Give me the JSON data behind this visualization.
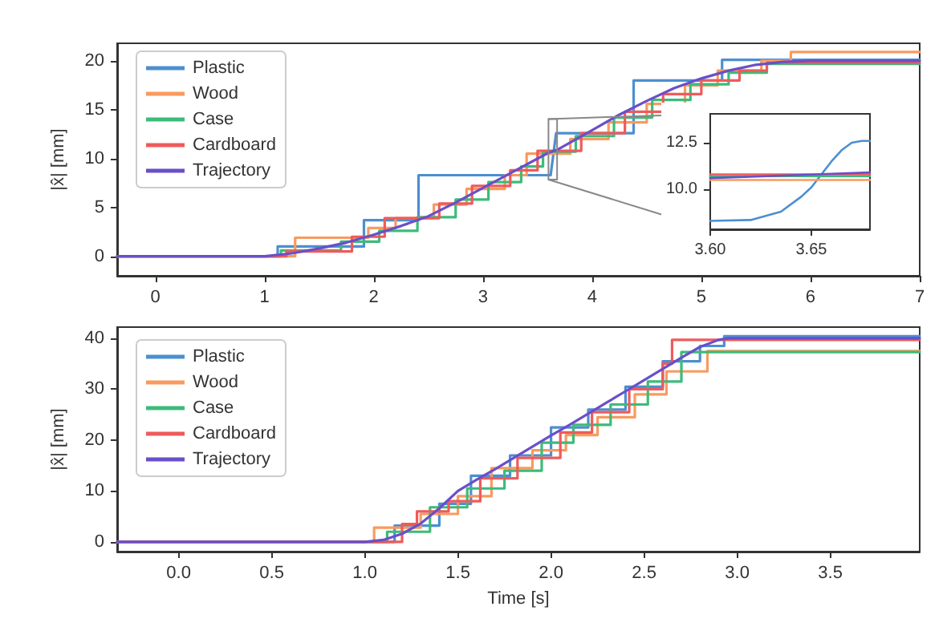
{
  "chart_data": [
    {
      "type": "line",
      "ylabel": "|x̂| [mm]",
      "legend": "top left",
      "grid": false,
      "xlim": [
        -0.35,
        7
      ],
      "ylim": [
        -2,
        21.8
      ],
      "xticks": [
        0,
        1,
        2,
        3,
        4,
        5,
        6,
        7
      ],
      "yticks": [
        0,
        5,
        10,
        15,
        20
      ],
      "series": [
        {
          "name": "Plastic",
          "color": "#4c8fd0",
          "x": [
            -0.35,
            1.12,
            1.12,
            1.91,
            1.91,
            2.41,
            2.41,
            3.62,
            3.67,
            4.38,
            4.38,
            5.19,
            5.19,
            7
          ],
          "values": [
            0,
            0,
            1.0,
            1.0,
            3.7,
            3.7,
            8.3,
            8.3,
            12.6,
            12.6,
            18.0,
            18.0,
            20.1,
            20.1
          ]
        },
        {
          "name": "Wood",
          "color": "#f99a5e",
          "x": [
            -0.35,
            1.28,
            1.28,
            1.95,
            1.95,
            2.2,
            2.2,
            2.55,
            2.55,
            2.85,
            2.85,
            3.2,
            3.2,
            3.4,
            3.4,
            3.8,
            3.8,
            4.15,
            4.15,
            4.5,
            4.5,
            4.85,
            4.85,
            5.15,
            5.15,
            5.55,
            5.55,
            5.82,
            5.82,
            7
          ],
          "values": [
            0,
            0,
            1.9,
            1.9,
            2.9,
            2.9,
            3.9,
            3.9,
            5.3,
            5.3,
            6.9,
            6.9,
            8.3,
            8.3,
            10.5,
            10.5,
            12.0,
            12.0,
            13.7,
            13.7,
            15.6,
            15.6,
            17.5,
            17.5,
            19.0,
            19.0,
            20.0,
            20.0,
            20.9,
            20.9
          ]
        },
        {
          "name": "Case",
          "color": "#3dbb7a",
          "x": [
            -0.35,
            1.15,
            1.15,
            1.7,
            1.7,
            2.05,
            2.05,
            2.4,
            2.4,
            2.75,
            2.75,
            3.05,
            3.05,
            3.35,
            3.35,
            3.55,
            3.55,
            3.85,
            3.85,
            4.2,
            4.2,
            4.55,
            4.55,
            4.9,
            4.9,
            5.25,
            5.25,
            5.6,
            5.6,
            7
          ],
          "values": [
            0,
            0,
            0.6,
            0.6,
            1.5,
            1.5,
            2.6,
            2.6,
            4.0,
            4.0,
            5.8,
            5.8,
            7.6,
            7.6,
            9.2,
            9.2,
            10.7,
            10.7,
            12.3,
            12.3,
            14.2,
            14.2,
            16.0,
            16.0,
            17.6,
            17.6,
            18.8,
            18.8,
            19.7,
            19.7
          ]
        },
        {
          "name": "Cardboard",
          "color": "#ee5b5b",
          "x": [
            -0.35,
            1.2,
            1.2,
            1.8,
            1.8,
            2.1,
            2.1,
            2.6,
            2.6,
            2.9,
            2.9,
            3.25,
            3.25,
            3.5,
            3.5,
            3.9,
            3.9,
            4.3,
            4.3,
            4.65,
            4.65,
            5.0,
            5.0,
            5.35,
            5.35,
            5.6,
            5.6,
            7
          ],
          "values": [
            0,
            0,
            0.5,
            0.5,
            2.0,
            2.0,
            3.9,
            3.9,
            5.4,
            5.4,
            7.2,
            7.2,
            8.8,
            8.8,
            10.8,
            10.8,
            12.6,
            12.6,
            14.8,
            14.8,
            16.6,
            16.6,
            18.0,
            18.0,
            19.0,
            19.0,
            19.8,
            19.8
          ]
        },
        {
          "name": "Trajectory",
          "color": "#6a4fc8",
          "x": [
            -0.35,
            1.0,
            1.25,
            1.5,
            1.75,
            2.0,
            2.25,
            2.5,
            2.75,
            3.0,
            3.25,
            3.6,
            3.68,
            4.0,
            4.25,
            4.5,
            4.75,
            5.0,
            5.25,
            5.5,
            5.75,
            6.0,
            7
          ],
          "values": [
            0,
            0,
            0.3,
            0.8,
            1.4,
            2.2,
            3.1,
            4.1,
            5.5,
            7.0,
            8.5,
            10.6,
            10.9,
            12.9,
            14.5,
            15.9,
            17.2,
            18.2,
            19.0,
            19.6,
            19.9,
            20.0,
            20.0
          ]
        }
      ]
    },
    {
      "type": "line",
      "legend": false,
      "grid": false,
      "xlim": [
        3.6,
        3.679
      ],
      "ylim": [
        7.85,
        14.05
      ],
      "xticks": [
        {
          "value": 3.6,
          "label": "3.60"
        },
        {
          "value": 3.65,
          "label": "3.65"
        }
      ],
      "yticks": [
        {
          "value": 10,
          "label": "10.0"
        },
        {
          "value": 12.5,
          "label": "12.5"
        }
      ],
      "series": [
        {
          "color": "#4c8fd0",
          "x": [
            3.6,
            3.62,
            3.635,
            3.645,
            3.65,
            3.655,
            3.66,
            3.665,
            3.67,
            3.675,
            3.679
          ],
          "values": [
            8.3,
            8.35,
            8.8,
            9.6,
            10.1,
            10.8,
            11.5,
            12.1,
            12.5,
            12.6,
            12.6
          ]
        },
        {
          "color": "#f99a5e",
          "x": [
            3.6,
            3.679
          ],
          "values": [
            10.5,
            10.5
          ]
        },
        {
          "color": "#3dbb7a",
          "x": [
            3.6,
            3.679
          ],
          "values": [
            10.7,
            10.7
          ]
        },
        {
          "color": "#ee5b5b",
          "x": [
            3.6,
            3.679
          ],
          "values": [
            10.8,
            10.8
          ]
        },
        {
          "color": "#6a4fc8",
          "x": [
            3.6,
            3.679
          ],
          "values": [
            10.6,
            10.9
          ]
        }
      ]
    },
    {
      "type": "line",
      "xlabel": "Time [s]",
      "ylabel": "|x̂| [mm]",
      "legend": "top left",
      "grid": false,
      "xlim": [
        -0.33,
        3.98
      ],
      "ylim": [
        -1.9,
        42.2
      ],
      "xticks": [
        {
          "value": 0,
          "label": "0.0"
        },
        {
          "value": 0.5,
          "label": "0.5"
        },
        {
          "value": 1,
          "label": "1.0"
        },
        {
          "value": 1.5,
          "label": "1.5"
        },
        {
          "value": 2,
          "label": "2.0"
        },
        {
          "value": 2.5,
          "label": "2.5"
        },
        {
          "value": 3,
          "label": "3.0"
        },
        {
          "value": 3.5,
          "label": "3.5"
        }
      ],
      "yticks": [
        0,
        10,
        20,
        30,
        40
      ],
      "series": [
        {
          "name": "Plastic",
          "color": "#4c8fd0",
          "x": [
            -0.33,
            1.16,
            1.16,
            1.4,
            1.4,
            1.57,
            1.57,
            1.78,
            1.78,
            2.0,
            2.0,
            2.2,
            2.2,
            2.4,
            2.4,
            2.6,
            2.6,
            2.8,
            2.8,
            2.93,
            2.93,
            3.98
          ],
          "values": [
            0,
            0,
            3.2,
            3.2,
            7.5,
            7.5,
            13.0,
            13.0,
            17.0,
            17.0,
            22.5,
            22.5,
            26.0,
            26.0,
            30.5,
            30.5,
            35.5,
            35.5,
            38.5,
            38.5,
            40.4,
            40.4
          ]
        },
        {
          "name": "Wood",
          "color": "#f99a5e",
          "x": [
            -0.33,
            1.05,
            1.05,
            1.3,
            1.3,
            1.5,
            1.5,
            1.68,
            1.68,
            1.9,
            1.9,
            2.08,
            2.08,
            2.25,
            2.25,
            2.45,
            2.45,
            2.62,
            2.62,
            2.84,
            2.84,
            3.98
          ],
          "values": [
            0,
            0,
            2.8,
            2.8,
            5.5,
            5.5,
            9.0,
            9.0,
            14.5,
            14.5,
            18.0,
            18.0,
            21.0,
            21.0,
            24.5,
            24.5,
            29.0,
            29.0,
            33.5,
            33.5,
            37.5,
            37.5
          ]
        },
        {
          "name": "Case",
          "color": "#3dbb7a",
          "x": [
            -0.33,
            1.12,
            1.12,
            1.35,
            1.35,
            1.55,
            1.55,
            1.75,
            1.75,
            1.95,
            1.95,
            2.12,
            2.12,
            2.32,
            2.32,
            2.52,
            2.52,
            2.7,
            2.7,
            3.98
          ],
          "values": [
            0,
            0,
            2.0,
            2.0,
            6.8,
            6.8,
            10.5,
            10.5,
            14.0,
            14.0,
            19.5,
            19.5,
            23.0,
            23.0,
            27.0,
            27.0,
            31.5,
            31.5,
            37.3,
            37.3
          ]
        },
        {
          "name": "Cardboard",
          "color": "#ee5b5b",
          "x": [
            -0.33,
            1.2,
            1.2,
            1.28,
            1.28,
            1.45,
            1.45,
            1.62,
            1.62,
            1.82,
            1.82,
            2.05,
            2.05,
            2.22,
            2.22,
            2.42,
            2.42,
            2.6,
            2.6,
            2.65,
            2.65,
            3.98
          ],
          "values": [
            0,
            0,
            3.5,
            3.5,
            6.0,
            6.0,
            8.0,
            8.0,
            12.5,
            12.5,
            16.5,
            16.5,
            21.5,
            21.5,
            25.5,
            25.5,
            30.0,
            30.0,
            35.0,
            35.0,
            39.7,
            39.7
          ]
        },
        {
          "name": "Trajectory",
          "color": "#6a4fc8",
          "x": [
            -0.33,
            1.0,
            1.1,
            1.2,
            1.3,
            1.4,
            1.5,
            1.6,
            1.7,
            1.8,
            1.9,
            2.0,
            2.1,
            2.2,
            2.3,
            2.4,
            2.5,
            2.6,
            2.7,
            2.8,
            2.9,
            2.95,
            3.98
          ],
          "values": [
            0,
            0,
            0.4,
            1.6,
            3.6,
            6.6,
            10.0,
            12.2,
            14.3,
            16.5,
            18.7,
            20.9,
            23.0,
            25.2,
            27.4,
            29.6,
            31.8,
            34.0,
            36.2,
            38.3,
            39.7,
            40.0,
            40.0
          ]
        }
      ]
    }
  ]
}
